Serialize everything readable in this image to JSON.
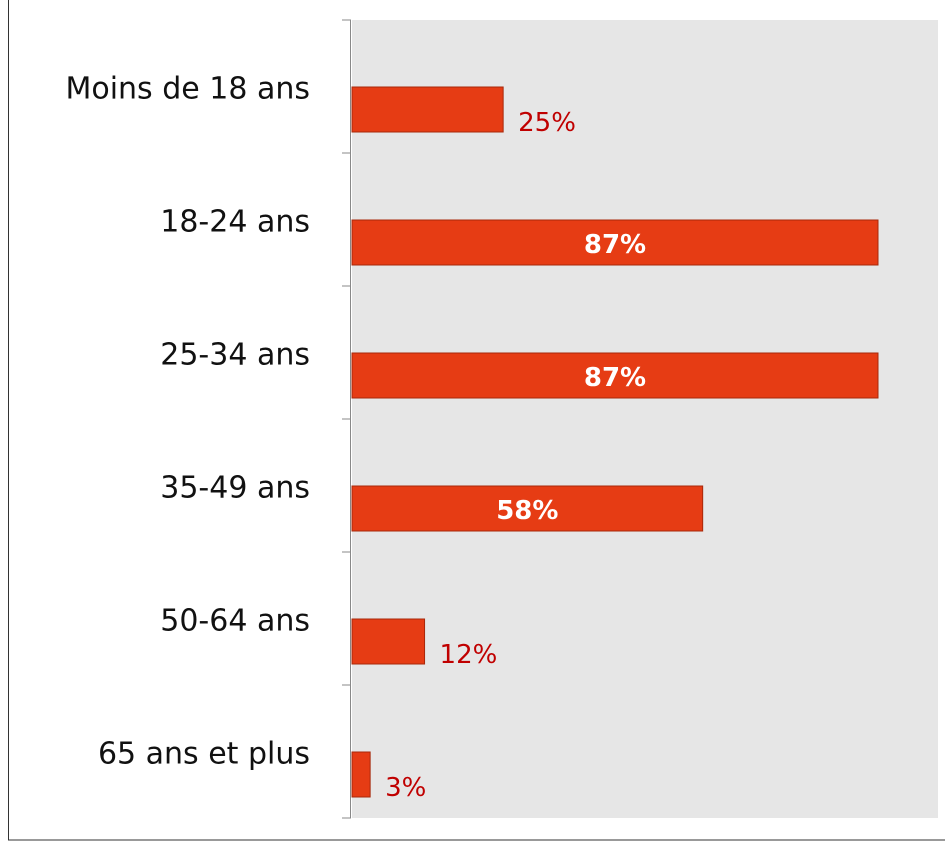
{
  "chart_data": {
    "type": "bar",
    "orientation": "horizontal",
    "categories": [
      "Moins de 18 ans",
      "18-24 ans",
      "25-34 ans",
      "35-49 ans",
      "50-64 ans",
      "65 ans et plus"
    ],
    "values": [
      25,
      87,
      87,
      58,
      12,
      3
    ],
    "value_labels": [
      "25%",
      "87%",
      "87%",
      "58%",
      "12%",
      "3%"
    ],
    "color": "#e63c14"
  }
}
